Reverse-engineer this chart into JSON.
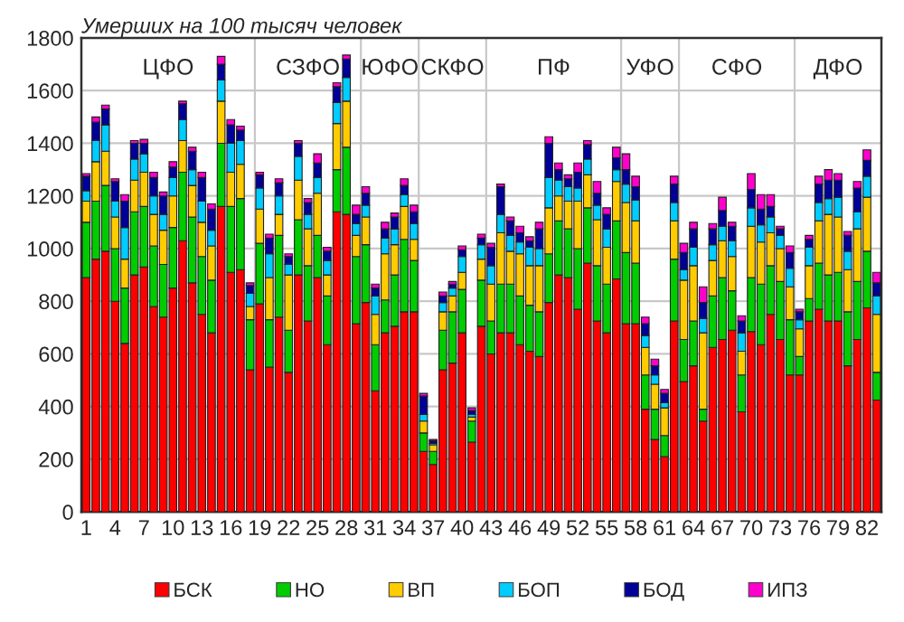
{
  "chart_data": {
    "type": "bar",
    "stacked": true,
    "title": "Умерших на 100 тысяч человек",
    "x": [
      1,
      2,
      3,
      4,
      5,
      6,
      7,
      8,
      9,
      10,
      11,
      12,
      13,
      14,
      15,
      16,
      17,
      18,
      19,
      20,
      21,
      22,
      23,
      24,
      25,
      26,
      27,
      28,
      29,
      30,
      31,
      32,
      33,
      34,
      35,
      36,
      37,
      38,
      39,
      40,
      41,
      42,
      43,
      44,
      45,
      46,
      47,
      48,
      49,
      50,
      51,
      52,
      53,
      54,
      55,
      56,
      57,
      58,
      59,
      60,
      61,
      62,
      63,
      64,
      65,
      66,
      67,
      68,
      69,
      70,
      71,
      72,
      73,
      74,
      75,
      76,
      77,
      78,
      79,
      80,
      81,
      82,
      83
    ],
    "xlim": [
      0.5,
      83.5
    ],
    "xticks": [
      1,
      4,
      7,
      10,
      13,
      16,
      19,
      22,
      25,
      28,
      31,
      34,
      37,
      40,
      43,
      46,
      49,
      52,
      55,
      58,
      61,
      64,
      67,
      70,
      73,
      76,
      79,
      82
    ],
    "ylim": [
      0,
      1800
    ],
    "yticks": [
      0,
      200,
      400,
      600,
      800,
      1000,
      1200,
      1400,
      1600,
      1800
    ],
    "grid": "y",
    "legend": "bottom",
    "series": [
      {
        "name": "БСК",
        "color": "#ff0000",
        "values": [
          890,
          960,
          990,
          800,
          640,
          900,
          930,
          780,
          740,
          850,
          1030,
          870,
          750,
          680,
          1160,
          910,
          920,
          540,
          790,
          550,
          740,
          530,
          900,
          725,
          890,
          635,
          1140,
          1130,
          715,
          795,
          460,
          680,
          705,
          760,
          760,
          230,
          180,
          540,
          565,
          680,
          265,
          705,
          600,
          680,
          680,
          635,
          610,
          590,
          795,
          900,
          890,
          770,
          945,
          725,
          680,
          885,
          715,
          715,
          390,
          275,
          210,
          725,
          495,
          555,
          345,
          625,
          655,
          690,
          380,
          685,
          635,
          750,
          655,
          520,
          520,
          725,
          770,
          725,
          725,
          555,
          655,
          775,
          425
        ]
      },
      {
        "name": "НО",
        "color": "#00cc00",
        "values": [
          210,
          220,
          250,
          200,
          210,
          240,
          230,
          230,
          200,
          230,
          260,
          250,
          220,
          200,
          240,
          250,
          270,
          190,
          230,
          180,
          310,
          160,
          210,
          210,
          160,
          185,
          160,
          255,
          255,
          220,
          175,
          125,
          195,
          275,
          195,
          70,
          50,
          150,
          195,
          165,
          80,
          175,
          125,
          185,
          185,
          185,
          175,
          170,
          185,
          205,
          185,
          230,
          210,
          210,
          185,
          220,
          270,
          230,
          130,
          115,
          80,
          235,
          160,
          170,
          45,
          195,
          235,
          150,
          140,
          205,
          230,
          185,
          220,
          210,
          70,
          85,
          175,
          175,
          185,
          205,
          220,
          215,
          105
        ]
      },
      {
        "name": "ВП",
        "color": "#ffcc00",
        "values": [
          80,
          150,
          130,
          120,
          110,
          120,
          130,
          120,
          130,
          120,
          120,
          120,
          130,
          130,
          160,
          130,
          130,
          50,
          130,
          160,
          80,
          210,
          150,
          140,
          160,
          80,
          175,
          175,
          80,
          105,
          115,
          175,
          115,
          125,
          80,
          45,
          25,
          70,
          60,
          65,
          15,
          80,
          140,
          195,
          125,
          160,
          150,
          175,
          175,
          95,
          105,
          180,
          125,
          175,
          140,
          150,
          190,
          160,
          105,
          95,
          105,
          145,
          225,
          210,
          290,
          135,
          140,
          130,
          90,
          195,
          160,
          125,
          125,
          125,
          105,
          125,
          160,
          230,
          210,
          160,
          200,
          205,
          220
        ]
      },
      {
        "name": "БОП",
        "color": "#00ccff",
        "values": [
          40,
          80,
          100,
          60,
          120,
          80,
          70,
          70,
          60,
          70,
          80,
          60,
          80,
          60,
          80,
          110,
          90,
          50,
          80,
          90,
          70,
          40,
          90,
          55,
          60,
          55,
          80,
          90,
          45,
          45,
          70,
          60,
          60,
          45,
          60,
          25,
          5,
          35,
          30,
          60,
          10,
          55,
          70,
          70,
          60,
          45,
          70,
          65,
          115,
          60,
          55,
          50,
          60,
          55,
          70,
          45,
          70,
          80,
          45,
          35,
          20,
          70,
          40,
          70,
          55,
          60,
          55,
          60,
          70,
          70,
          65,
          60,
          50,
          70,
          35,
          70,
          70,
          60,
          75,
          70,
          65,
          80,
          70
        ]
      },
      {
        "name": "БОД",
        "color": "#000099",
        "values": [
          55,
          70,
          60,
          75,
          100,
          60,
          40,
          70,
          70,
          40,
          60,
          70,
          90,
          80,
          60,
          70,
          40,
          30,
          50,
          60,
          50,
          30,
          50,
          45,
          55,
          35,
          60,
          70,
          35,
          45,
          30,
          35,
          45,
          35,
          45,
          70,
          10,
          25,
          15,
          25,
          15,
          25,
          70,
          105,
          55,
          35,
          25,
          75,
          130,
          40,
          30,
          60,
          55,
          45,
          55,
          45,
          55,
          50,
          45,
          35,
          35,
          70,
          65,
          70,
          60,
          60,
          60,
          55,
          45,
          70,
          60,
          40,
          25,
          60,
          30,
          30,
          70,
          70,
          65,
          60,
          90,
          60,
          50
        ]
      },
      {
        "name": "ИПЗ",
        "color": "#ff00cc",
        "values": [
          10,
          20,
          15,
          10,
          25,
          10,
          15,
          20,
          15,
          20,
          10,
          15,
          20,
          20,
          30,
          20,
          15,
          10,
          10,
          15,
          15,
          10,
          10,
          15,
          35,
          15,
          15,
          15,
          35,
          25,
          15,
          25,
          15,
          25,
          25,
          10,
          5,
          15,
          10,
          15,
          10,
          15,
          15,
          10,
          15,
          25,
          15,
          25,
          25,
          25,
          15,
          35,
          15,
          45,
          25,
          40,
          60,
          40,
          25,
          25,
          15,
          30,
          35,
          25,
          60,
          20,
          50,
          15,
          20,
          60,
          55,
          45,
          10,
          25,
          10,
          15,
          30,
          40,
          25,
          15,
          25,
          40,
          40
        ]
      }
    ],
    "ref_lines": [
      {
        "axis": "x",
        "value": 18.5,
        "color": "#c8c8c8"
      },
      {
        "axis": "x",
        "value": 29.5,
        "color": "#c8c8c8"
      },
      {
        "axis": "x",
        "value": 35.5,
        "color": "#c8c8c8"
      },
      {
        "axis": "x",
        "value": 42.5,
        "color": "#c8c8c8"
      },
      {
        "axis": "x",
        "value": 56.5,
        "color": "#c8c8c8"
      },
      {
        "axis": "x",
        "value": 62.5,
        "color": "#c8c8c8"
      },
      {
        "axis": "x",
        "value": 74.5,
        "color": "#c8c8c8"
      }
    ],
    "annotations": [
      "ЦФО",
      "СЗФО",
      "ЮФО",
      "СКФО",
      "ПФ",
      "УФО",
      "СФО",
      "ДФО"
    ]
  }
}
